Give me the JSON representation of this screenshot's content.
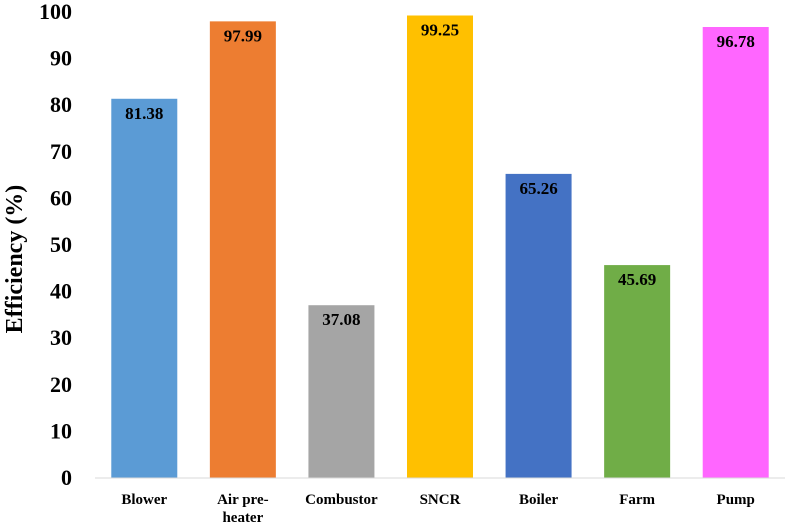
{
  "chart_data": {
    "type": "bar",
    "title": "",
    "xlabel": "",
    "ylabel": "Efficiency (%)",
    "categories": [
      [
        "Blower"
      ],
      [
        "Air pre-",
        "heater"
      ],
      [
        "Combustor"
      ],
      [
        "SNCR"
      ],
      [
        "Boiler"
      ],
      [
        "Farm"
      ],
      [
        "Pump"
      ]
    ],
    "values": [
      81.38,
      97.99,
      37.08,
      99.25,
      65.26,
      45.69,
      96.78
    ],
    "value_labels": [
      "81.38",
      "97.99",
      "37.08",
      "99.25",
      "65.26",
      "45.69",
      "96.78"
    ],
    "colors": [
      "#5b9bd5",
      "#ed7d31",
      "#a5a5a5",
      "#ffc000",
      "#4472c4",
      "#70ad47",
      "#ff66ff"
    ],
    "ylim": [
      0,
      100
    ],
    "yticks": [
      0,
      10,
      20,
      30,
      40,
      50,
      60,
      70,
      80,
      90,
      100
    ],
    "grid": false,
    "legend": "none"
  }
}
